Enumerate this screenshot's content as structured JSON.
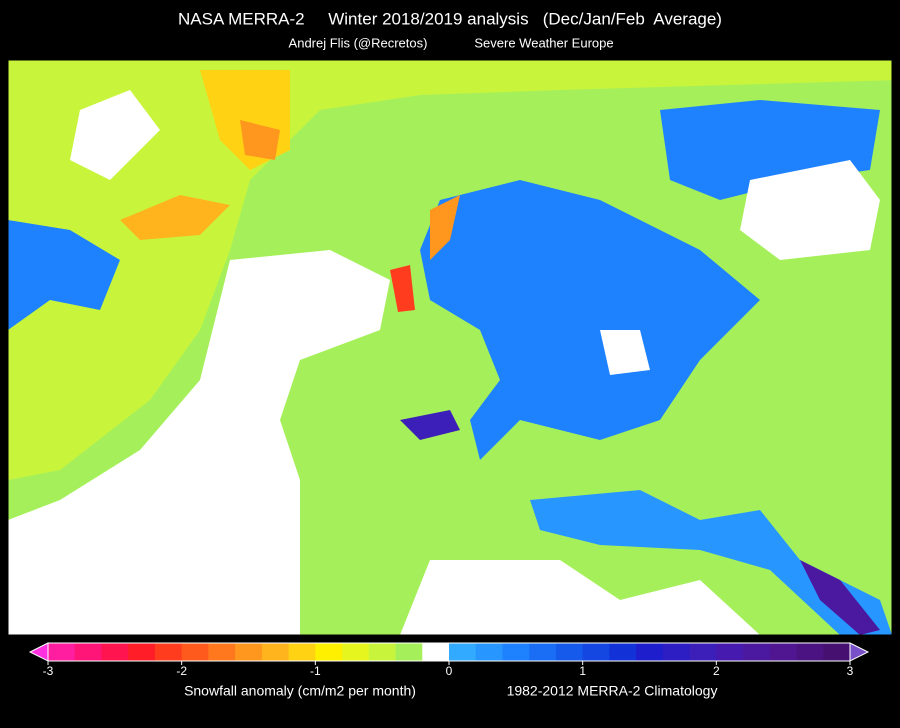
{
  "header": {
    "title": "NASA MERRA-2     Winter 2018/2019 analysis   (Dec/Jan/Feb  Average)",
    "credit": "Andrej Flis (@Recretos)",
    "source": "Severe Weather Europe"
  },
  "colorbar": {
    "ticks": [
      -3,
      -2,
      -1,
      0,
      1,
      2,
      3
    ],
    "colors": [
      "#ff1ea0",
      "#ff1478",
      "#ff1450",
      "#ff1e28",
      "#ff3c1e",
      "#ff5a1e",
      "#ff781e",
      "#ff961e",
      "#ffb41e",
      "#ffd214",
      "#fff000",
      "#e6f51e",
      "#c8f53c",
      "#a5f05a",
      "#ffffff",
      "#32aaff",
      "#2896ff",
      "#1e82ff",
      "#1a6ef5",
      "#165aeb",
      "#1446e1",
      "#1232d7",
      "#1e1ecd",
      "#2d1ec3",
      "#3c1eb9",
      "#461aaf",
      "#4b18a0",
      "#501691",
      "#4b1282",
      "#461070"
    ],
    "under_color": "#ff30e0",
    "over_color": "#7850c8",
    "label_left": "Snowfall anomaly (cm/m2 per month)",
    "label_right": "1982-2012 MERRA-2 Climatology"
  }
}
